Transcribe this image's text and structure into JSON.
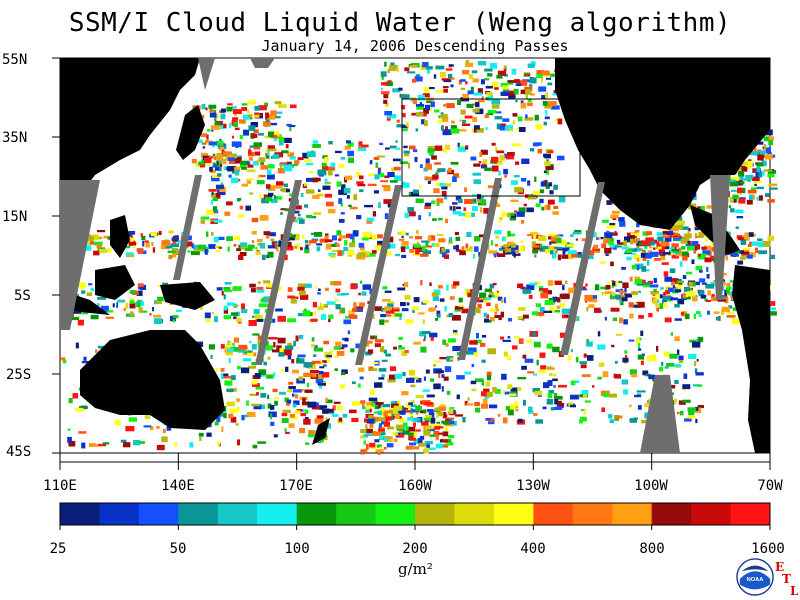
{
  "title": "SSM/I Cloud Liquid Water (Weng algorithm)",
  "subtitle": "January 14, 2006  Descending Passes",
  "lat_labels": [
    "55N",
    "35N",
    "15N",
    "5S",
    "25S",
    "45S"
  ],
  "lon_labels": [
    "110E",
    "140E",
    "170E",
    "160W",
    "130W",
    "100W",
    "70W"
  ],
  "colorbar": {
    "ticks": [
      "25",
      "50",
      "100",
      "200",
      "400",
      "800",
      "1600"
    ],
    "units": "g/m²",
    "colors": [
      "#0a1e7a",
      "#0a32c8",
      "#1450ff",
      "#0a9696",
      "#14c8c8",
      "#14f0f0",
      "#0a960a",
      "#14c814",
      "#14f014",
      "#b4b40a",
      "#dcdc0a",
      "#ffff14",
      "#ff5014",
      "#ff7814",
      "#ffa014",
      "#960a0a",
      "#c80a0a",
      "#ff1414"
    ]
  },
  "logo": {
    "noaa_text": "NOAA",
    "etl_letters": [
      "E",
      "T",
      "L"
    ]
  },
  "colors": {
    "land": "#000000",
    "ocean_clear": "#ffffff",
    "gap": "#6e6e6e",
    "inset_box": "#000000"
  }
}
